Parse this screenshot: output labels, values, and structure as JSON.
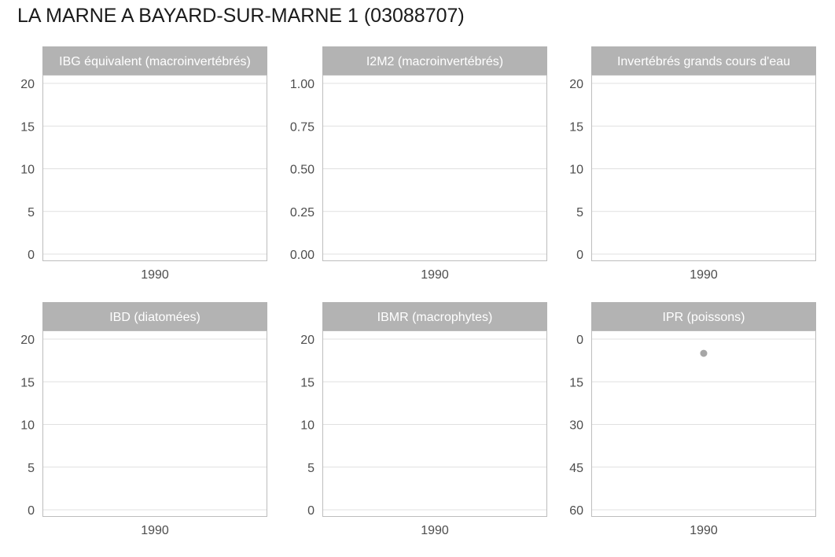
{
  "title": "LA MARNE A BAYARD-SUR-MARNE 1 (03088707)",
  "colors": {
    "strip": "#b3b3b3",
    "strip_text": "#ffffff",
    "panel_border": "#bdbdbd",
    "grid": "#e0e0e0",
    "tick_text": "#4d4d4d",
    "point": "#a6a6a6"
  },
  "chart_data": [
    {
      "type": "scatter",
      "strip_title": "IBG équivalent (macroinvertébrés)",
      "x_ticks": [
        "1990"
      ],
      "y_ticks": [
        "20",
        "15",
        "10",
        "5",
        "0"
      ],
      "ylim": [
        0,
        20
      ],
      "y_reversed": false,
      "points": []
    },
    {
      "type": "scatter",
      "strip_title": "I2M2 (macroinvertébrés)",
      "x_ticks": [
        "1990"
      ],
      "y_ticks": [
        "1.00",
        "0.75",
        "0.50",
        "0.25",
        "0.00"
      ],
      "ylim": [
        0,
        1
      ],
      "y_reversed": false,
      "points": []
    },
    {
      "type": "scatter",
      "strip_title": "Invertébrés grands cours d'eau",
      "x_ticks": [
        "1990"
      ],
      "y_ticks": [
        "20",
        "15",
        "10",
        "5",
        "0"
      ],
      "ylim": [
        0,
        20
      ],
      "y_reversed": false,
      "points": []
    },
    {
      "type": "scatter",
      "strip_title": "IBD (diatomées)",
      "x_ticks": [
        "1990"
      ],
      "y_ticks": [
        "20",
        "15",
        "10",
        "5",
        "0"
      ],
      "ylim": [
        0,
        20
      ],
      "y_reversed": false,
      "points": []
    },
    {
      "type": "scatter",
      "strip_title": "IBMR (macrophytes)",
      "x_ticks": [
        "1990"
      ],
      "y_ticks": [
        "20",
        "15",
        "10",
        "5",
        "0"
      ],
      "ylim": [
        0,
        20
      ],
      "y_reversed": false,
      "points": []
    },
    {
      "type": "scatter",
      "strip_title": "IPR (poissons)",
      "x_ticks": [
        "1990"
      ],
      "y_ticks": [
        "0",
        "15",
        "30",
        "45",
        "60"
      ],
      "ylim": [
        0,
        60
      ],
      "y_reversed": true,
      "points": [
        {
          "x": "1990",
          "y": 5
        }
      ]
    }
  ]
}
